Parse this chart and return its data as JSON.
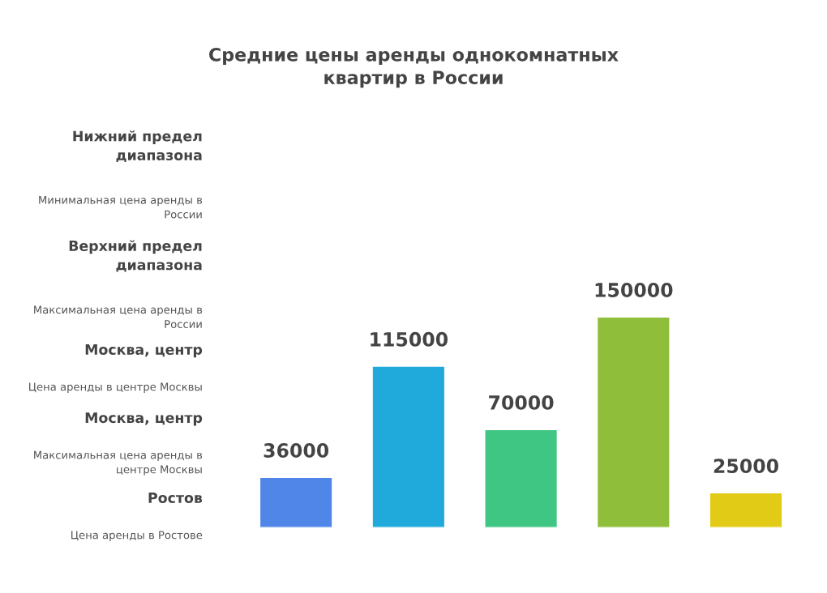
{
  "chart_data": {
    "type": "bar",
    "title": "Средние цены аренды однокомнатных\nквартир в России",
    "categories": [
      null,
      null,
      null,
      null,
      null
    ],
    "values": [
      36000,
      115000,
      70000,
      150000,
      25000
    ],
    "colors": [
      "#4f86e8",
      "#20aadc",
      "#3ec682",
      "#8fbe3a",
      "#e1cb17"
    ],
    "data_labels": true,
    "annotations": [
      "Нижний предел\nдиапазона",
      "Минимальная цена аренды в\nРоссии",
      "Верхний предел\nдиапазона",
      "Максимальная цена аренды в\nРоссии",
      "Москва, центр",
      "Цена аренды в центре Москвы",
      "Москва, центр",
      "Максимальная цена аренды в\nцентре Москвы",
      "Ростов",
      "Цена аренды в Ростове"
    ]
  }
}
